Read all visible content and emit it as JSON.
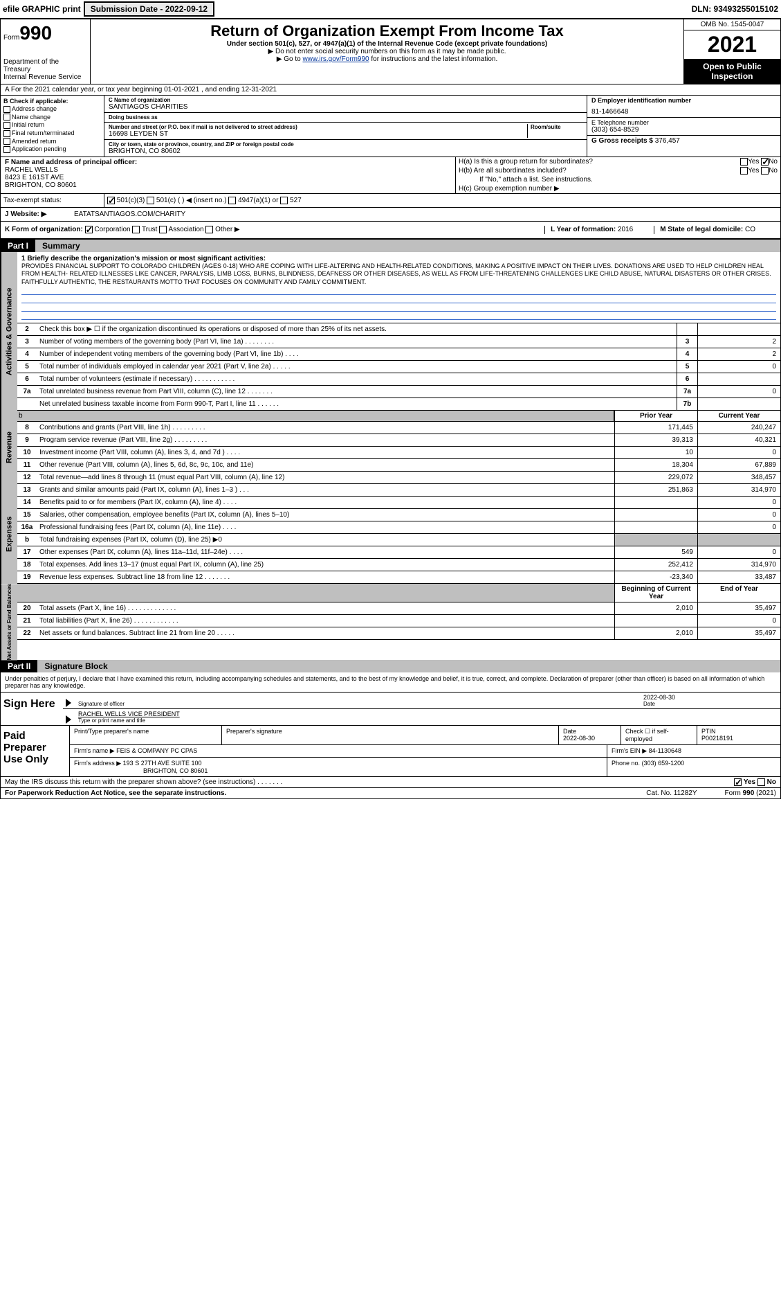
{
  "header": {
    "efile": "efile GRAPHIC print",
    "submission_label": "Submission Date - 2022-09-12",
    "dln_label": "DLN: 93493255015102"
  },
  "top": {
    "form_small": "Form",
    "form_num": "990",
    "dept": "Department of the Treasury",
    "irs": "Internal Revenue Service",
    "title": "Return of Organization Exempt From Income Tax",
    "subtitle": "Under section 501(c), 527, or 4947(a)(1) of the Internal Revenue Code (except private foundations)",
    "note1": "▶ Do not enter social security numbers on this form as it may be made public.",
    "note2_pre": "▶ Go to ",
    "note2_link": "www.irs.gov/Form990",
    "note2_post": " for instructions and the latest information.",
    "omb": "OMB No. 1545-0047",
    "year": "2021",
    "open": "Open to Public Inspection"
  },
  "lineA": "A For the 2021 calendar year, or tax year beginning 01-01-2021   , and ending 12-31-2021",
  "colB": {
    "hdr": "B Check if applicable:",
    "items": [
      "Address change",
      "Name change",
      "Initial return",
      "Final return/terminated",
      "Amended return",
      "Application pending"
    ]
  },
  "colC": {
    "name_lbl": "C Name of organization",
    "name": "SANTIAGOS CHARITIES",
    "dba_lbl": "Doing business as",
    "dba": "",
    "addr_lbl": "Number and street (or P.O. box if mail is not delivered to street address)",
    "addr": "16698 LEYDEN ST",
    "room_lbl": "Room/suite",
    "city_lbl": "City or town, state or province, country, and ZIP or foreign postal code",
    "city": "BRIGHTON, CO  80602"
  },
  "colD": {
    "ein_lbl": "D Employer identification number",
    "ein": "81-1466648",
    "tel_lbl": "E Telephone number",
    "tel": "(303) 654-8529",
    "gross_lbl": "G Gross receipts $",
    "gross": "376,457"
  },
  "rowF": {
    "lbl": "F  Name and address of principal officer:",
    "name": "RACHEL WELLS",
    "addr1": "8423 E 161ST AVE",
    "addr2": "BRIGHTON, CO  80601"
  },
  "rowH": {
    "a": "H(a)  Is this a group return for subordinates?",
    "b": "H(b)  Are all subordinates included?",
    "b2": "If \"No,\" attach a list. See instructions.",
    "c": "H(c)  Group exemption number ▶"
  },
  "rowI": {
    "lbl": "Tax-exempt status:",
    "opts": [
      "501(c)(3)",
      "501(c) (  ) ◀ (insert no.)",
      "4947(a)(1) or",
      "527"
    ]
  },
  "rowJ": {
    "lbl": "J Website: ▶",
    "val": "EATATSANTIAGOS.COM/CHARITY"
  },
  "rowK": {
    "k": "K Form of organization:",
    "opts": [
      "Corporation",
      "Trust",
      "Association",
      "Other ▶"
    ],
    "l_lbl": "L Year of formation:",
    "l_val": "2016",
    "m_lbl": "M State of legal domicile:",
    "m_val": "CO"
  },
  "part1": {
    "num": "Part I",
    "title": "Summary"
  },
  "mission": {
    "lbl": "1   Briefly describe the organization's mission or most significant activities:",
    "text": "PROVIDES FINANCIAL SUPPORT TO COLORADO CHILDREN (AGES 0-18) WHO ARE COPING WITH LIFE-ALTERING AND HEALTH-RELATED CONDITIONS, MAKING A POSITIVE IMPACT ON THEIR LIVES. DONATIONS ARE USED TO HELP CHILDREN HEAL FROM HEALTH- RELATED ILLNESSES LIKE CANCER, PARALYSIS, LIMB LOSS, BURNS, BLINDNESS, DEAFNESS OR OTHER DISEASES, AS WELL AS FROM LIFE-THREATENING CHALLENGES LIKE CHILD ABUSE, NATURAL DISASTERS OR OTHER CRISES. FAITHFULLY AUTHENTIC, THE RESTAURANTS MOTTO THAT FOCUSES ON COMMUNITY AND FAMILY COMMITMENT."
  },
  "gov_lines": [
    {
      "n": "2",
      "t": "Check this box ▶ ☐ if the organization discontinued its operations or disposed of more than 25% of its net assets.",
      "b": "",
      "v": ""
    },
    {
      "n": "3",
      "t": "Number of voting members of the governing body (Part VI, line 1a)   .    .    .    .    .    .    .    .",
      "b": "3",
      "v": "2"
    },
    {
      "n": "4",
      "t": "Number of independent voting members of the governing body (Part VI, line 1b)   .    .    .    .",
      "b": "4",
      "v": "2"
    },
    {
      "n": "5",
      "t": "Total number of individuals employed in calendar year 2021 (Part V, line 2a)   .    .    .    .    .",
      "b": "5",
      "v": "0"
    },
    {
      "n": "6",
      "t": "Total number of volunteers (estimate if necessary)   .    .    .    .    .    .    .    .    .    .    .",
      "b": "6",
      "v": ""
    },
    {
      "n": "7a",
      "t": "Total unrelated business revenue from Part VIII, column (C), line 12   .    .    .    .    .    .    .",
      "b": "7a",
      "v": "0"
    },
    {
      "n": "",
      "t": "Net unrelated business taxable income from Form 990-T, Part I, line 11   .    .    .    .    .    .",
      "b": "7b",
      "v": ""
    }
  ],
  "col_headers": {
    "b": "b",
    "py": "Prior Year",
    "cy": "Current Year"
  },
  "rev_lines": [
    {
      "n": "8",
      "t": "Contributions and grants (Part VIII, line 1h)   .    .    .    .    .    .    .    .    .",
      "py": "171,445",
      "cy": "240,247"
    },
    {
      "n": "9",
      "t": "Program service revenue (Part VIII, line 2g)   .    .    .    .    .    .    .    .    .",
      "py": "39,313",
      "cy": "40,321"
    },
    {
      "n": "10",
      "t": "Investment income (Part VIII, column (A), lines 3, 4, and 7d )   .    .    .    .",
      "py": "10",
      "cy": "0"
    },
    {
      "n": "11",
      "t": "Other revenue (Part VIII, column (A), lines 5, 6d, 8c, 9c, 10c, and 11e)",
      "py": "18,304",
      "cy": "67,889"
    },
    {
      "n": "12",
      "t": "Total revenue—add lines 8 through 11 (must equal Part VIII, column (A), line 12)",
      "py": "229,072",
      "cy": "348,457"
    }
  ],
  "exp_lines": [
    {
      "n": "13",
      "t": "Grants and similar amounts paid (Part IX, column (A), lines 1–3 )   .    .    .",
      "py": "251,863",
      "cy": "314,970"
    },
    {
      "n": "14",
      "t": "Benefits paid to or for members (Part IX, column (A), line 4)   .    .    .    .",
      "py": "",
      "cy": "0"
    },
    {
      "n": "15",
      "t": "Salaries, other compensation, employee benefits (Part IX, column (A), lines 5–10)",
      "py": "",
      "cy": "0"
    },
    {
      "n": "16a",
      "t": "Professional fundraising fees (Part IX, column (A), line 11e)   .    .    .    .",
      "py": "",
      "cy": "0"
    },
    {
      "n": "b",
      "t": "Total fundraising expenses (Part IX, column (D), line 25) ▶0",
      "py": "shade",
      "cy": "shade"
    },
    {
      "n": "17",
      "t": "Other expenses (Part IX, column (A), lines 11a–11d, 11f–24e)   .    .    .    .",
      "py": "549",
      "cy": "0"
    },
    {
      "n": "18",
      "t": "Total expenses. Add lines 13–17 (must equal Part IX, column (A), line 25)",
      "py": "252,412",
      "cy": "314,970"
    },
    {
      "n": "19",
      "t": "Revenue less expenses. Subtract line 18 from line 12   .    .    .    .    .    .    .",
      "py": "-23,340",
      "cy": "33,487"
    }
  ],
  "na_headers": {
    "py": "Beginning of Current Year",
    "cy": "End of Year"
  },
  "na_lines": [
    {
      "n": "20",
      "t": "Total assets (Part X, line 16)   .    .    .    .    .    .    .    .    .    .    .    .    .",
      "py": "2,010",
      "cy": "35,497"
    },
    {
      "n": "21",
      "t": "Total liabilities (Part X, line 26)   .    .    .    .    .    .    .    .    .    .    .    .",
      "py": "",
      "cy": "0"
    },
    {
      "n": "22",
      "t": "Net assets or fund balances. Subtract line 21 from line 20   .    .    .    .    .",
      "py": "2,010",
      "cy": "35,497"
    }
  ],
  "part2": {
    "num": "Part II",
    "title": "Signature Block"
  },
  "sig": {
    "perjury": "Under penalties of perjury, I declare that I have examined this return, including accompanying schedules and statements, and to the best of my knowledge and belief, it is true, correct, and complete. Declaration of preparer (other than officer) is based on all information of which preparer has any knowledge.",
    "sign_here": "Sign Here",
    "sig_officer": "Signature of officer",
    "date_lbl": "Date",
    "date_val": "2022-08-30",
    "name": "RACHEL WELLS  VICE PRESIDENT",
    "name_lbl": "Type or print name and title"
  },
  "paid": {
    "title": "Paid Preparer Use Only",
    "h1": "Print/Type preparer's name",
    "h2": "Preparer's signature",
    "h3": "Date",
    "h3v": "2022-08-30",
    "h4": "Check ☐ if self-employed",
    "h5": "PTIN",
    "h5v": "P00218191",
    "firm_lbl": "Firm's name    ▶",
    "firm": "FEIS & COMPANY PC CPAS",
    "ein_lbl": "Firm's EIN ▶",
    "ein": "84-1130648",
    "addr_lbl": "Firm's address ▶",
    "addr1": "193 S 27TH AVE SUITE 100",
    "addr2": "BRIGHTON, CO  80601",
    "phone_lbl": "Phone no.",
    "phone": "(303) 659-1200"
  },
  "footer": {
    "q": "May the IRS discuss this return with the preparer shown above? (see instructions)    .    .    .    .    .    .    .",
    "pra": "For Paperwork Reduction Act Notice, see the separate instructions.",
    "cat": "Cat. No. 11282Y",
    "form": "Form 990 (2021)"
  },
  "vtabs": {
    "gov": "Activities & Governance",
    "rev": "Revenue",
    "exp": "Expenses",
    "na": "Net Assets or Fund Balances"
  }
}
